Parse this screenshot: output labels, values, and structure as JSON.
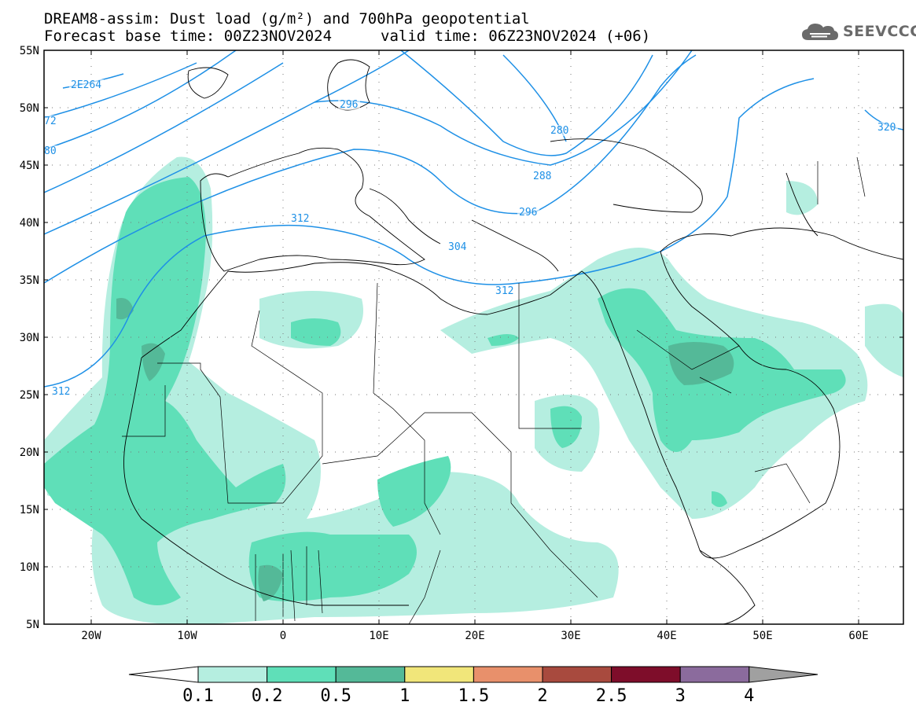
{
  "header": {
    "line1": "DREAM8-assim: Dust load (g/m²) and 700hPa geopotential",
    "line2a": "Forecast base time: 00Z23NOV2024",
    "line2b": "valid time: 06Z23NOV2024 (+06)"
  },
  "logo": {
    "text": "SEEVCCC",
    "icon": "cloud-icon"
  },
  "map": {
    "lat_labels": [
      "55N",
      "50N",
      "45N",
      "40N",
      "35N",
      "30N",
      "25N",
      "20N",
      "15N",
      "10N",
      "5N"
    ],
    "lon_labels": [
      "20W",
      "10W",
      "0",
      "10E",
      "20E",
      "30E",
      "40E",
      "50E",
      "60E"
    ],
    "contour_labels": [
      "2E264",
      "72",
      "80",
      "296",
      "280",
      "288",
      "296",
      "304",
      "312",
      "312",
      "312",
      "320"
    ]
  },
  "colorbar": {
    "labels": [
      "0.1",
      "0.2",
      "0.5",
      "1",
      "1.5",
      "2",
      "2.5",
      "3",
      "4"
    ],
    "colors": [
      "#ffffff",
      "#b5eee0",
      "#5fdfb8",
      "#54b998",
      "#f1e67a",
      "#e8906b",
      "#a84a3e",
      "#7e0d2a",
      "#8b6b9d",
      "#a0a0a0"
    ]
  },
  "colors": {
    "contour": "#1e90e6",
    "coast": "#000000",
    "dust_light": "#b5eee0",
    "dust_mid": "#5fdfb8",
    "dust_dark": "#54b998"
  }
}
